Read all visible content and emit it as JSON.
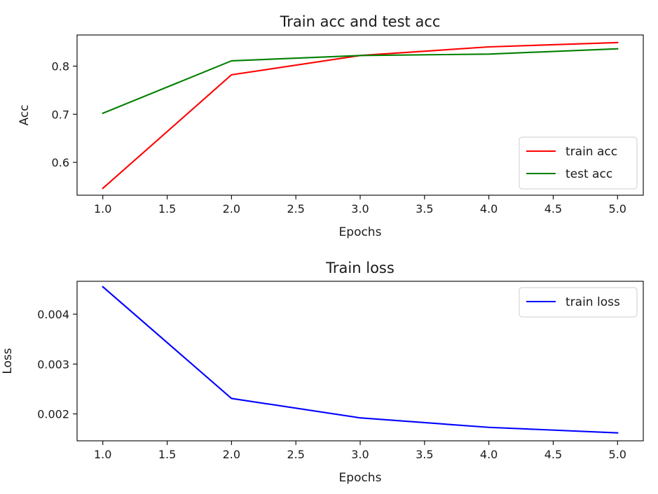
{
  "chart_data": [
    {
      "type": "line",
      "title": "Train acc and test acc",
      "xlabel": "Epochs",
      "ylabel": "Acc",
      "xlim": [
        0.8,
        5.2
      ],
      "ylim": [
        0.5317,
        0.8647
      ],
      "xticks": [
        1.0,
        1.5,
        2.0,
        2.5,
        3.0,
        3.5,
        4.0,
        4.5,
        5.0
      ],
      "xtick_labels": [
        "1.0",
        "1.5",
        "2.0",
        "2.5",
        "3.0",
        "3.5",
        "4.0",
        "4.5",
        "5.0"
      ],
      "yticks": [
        0.6,
        0.7,
        0.8
      ],
      "ytick_labels": [
        "0.6",
        "0.7",
        "0.8"
      ],
      "legend": "lower-right",
      "grid": false,
      "x": [
        1,
        2,
        3,
        4,
        5
      ],
      "series": [
        {
          "name": "train acc",
          "color": "#ff0000",
          "values": [
            0.546,
            0.782,
            0.822,
            0.84,
            0.849
          ]
        },
        {
          "name": "test acc",
          "color": "#008000",
          "values": [
            0.702,
            0.811,
            0.822,
            0.825,
            0.836
          ]
        }
      ]
    },
    {
      "type": "line",
      "title": "Train loss",
      "xlabel": "Epochs",
      "ylabel": "Loss",
      "xlim": [
        0.8,
        5.2
      ],
      "ylim": [
        0.00146,
        0.00466
      ],
      "xticks": [
        1.0,
        1.5,
        2.0,
        2.5,
        3.0,
        3.5,
        4.0,
        4.5,
        5.0
      ],
      "xtick_labels": [
        "1.0",
        "1.5",
        "2.0",
        "2.5",
        "3.0",
        "3.5",
        "4.0",
        "4.5",
        "5.0"
      ],
      "yticks": [
        0.002,
        0.003,
        0.004
      ],
      "ytick_labels": [
        "0.002",
        "0.003",
        "0.004"
      ],
      "legend": "upper-right",
      "grid": false,
      "x": [
        1,
        2,
        3,
        4,
        5
      ],
      "series": [
        {
          "name": "train loss",
          "color": "#0000ff",
          "values": [
            0.00455,
            0.00231,
            0.00192,
            0.00173,
            0.00162
          ]
        }
      ]
    }
  ]
}
